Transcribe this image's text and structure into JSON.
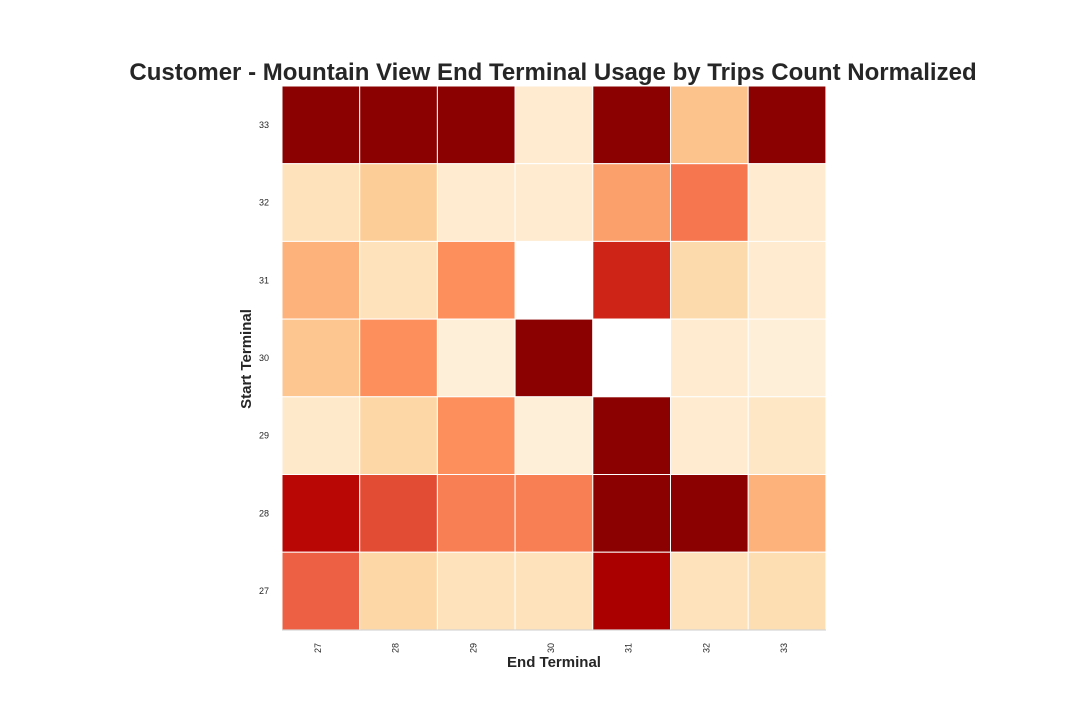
{
  "chart_data": {
    "type": "heatmap",
    "title": "Customer - Mountain View End Terminal Usage by Trips Count Normalized",
    "xlabel": "End Terminal",
    "ylabel": "Start Terminal",
    "x_categories": [
      "27",
      "28",
      "29",
      "30",
      "31",
      "32",
      "33"
    ],
    "y_categories": [
      "33",
      "32",
      "31",
      "30",
      "29",
      "28",
      "27"
    ],
    "values": [
      [
        1.0,
        1.0,
        1.0,
        0.08,
        1.0,
        0.33,
        1.0
      ],
      [
        0.15,
        0.28,
        0.08,
        0.08,
        0.45,
        0.58,
        0.08
      ],
      [
        0.4,
        0.15,
        0.5,
        null,
        0.8,
        0.2,
        0.08
      ],
      [
        0.32,
        0.5,
        0.05,
        1.0,
        null,
        0.08,
        0.05
      ],
      [
        0.1,
        0.22,
        0.5,
        0.05,
        1.0,
        0.08,
        0.12
      ],
      [
        0.88,
        0.7,
        0.55,
        0.55,
        1.0,
        1.0,
        0.4
      ],
      [
        0.65,
        0.22,
        0.15,
        0.15,
        0.92,
        0.15,
        0.18
      ]
    ],
    "colormap": "OrRd",
    "missing_color": "#ffffff",
    "grid_color": "#ffffff",
    "legend": "none"
  }
}
